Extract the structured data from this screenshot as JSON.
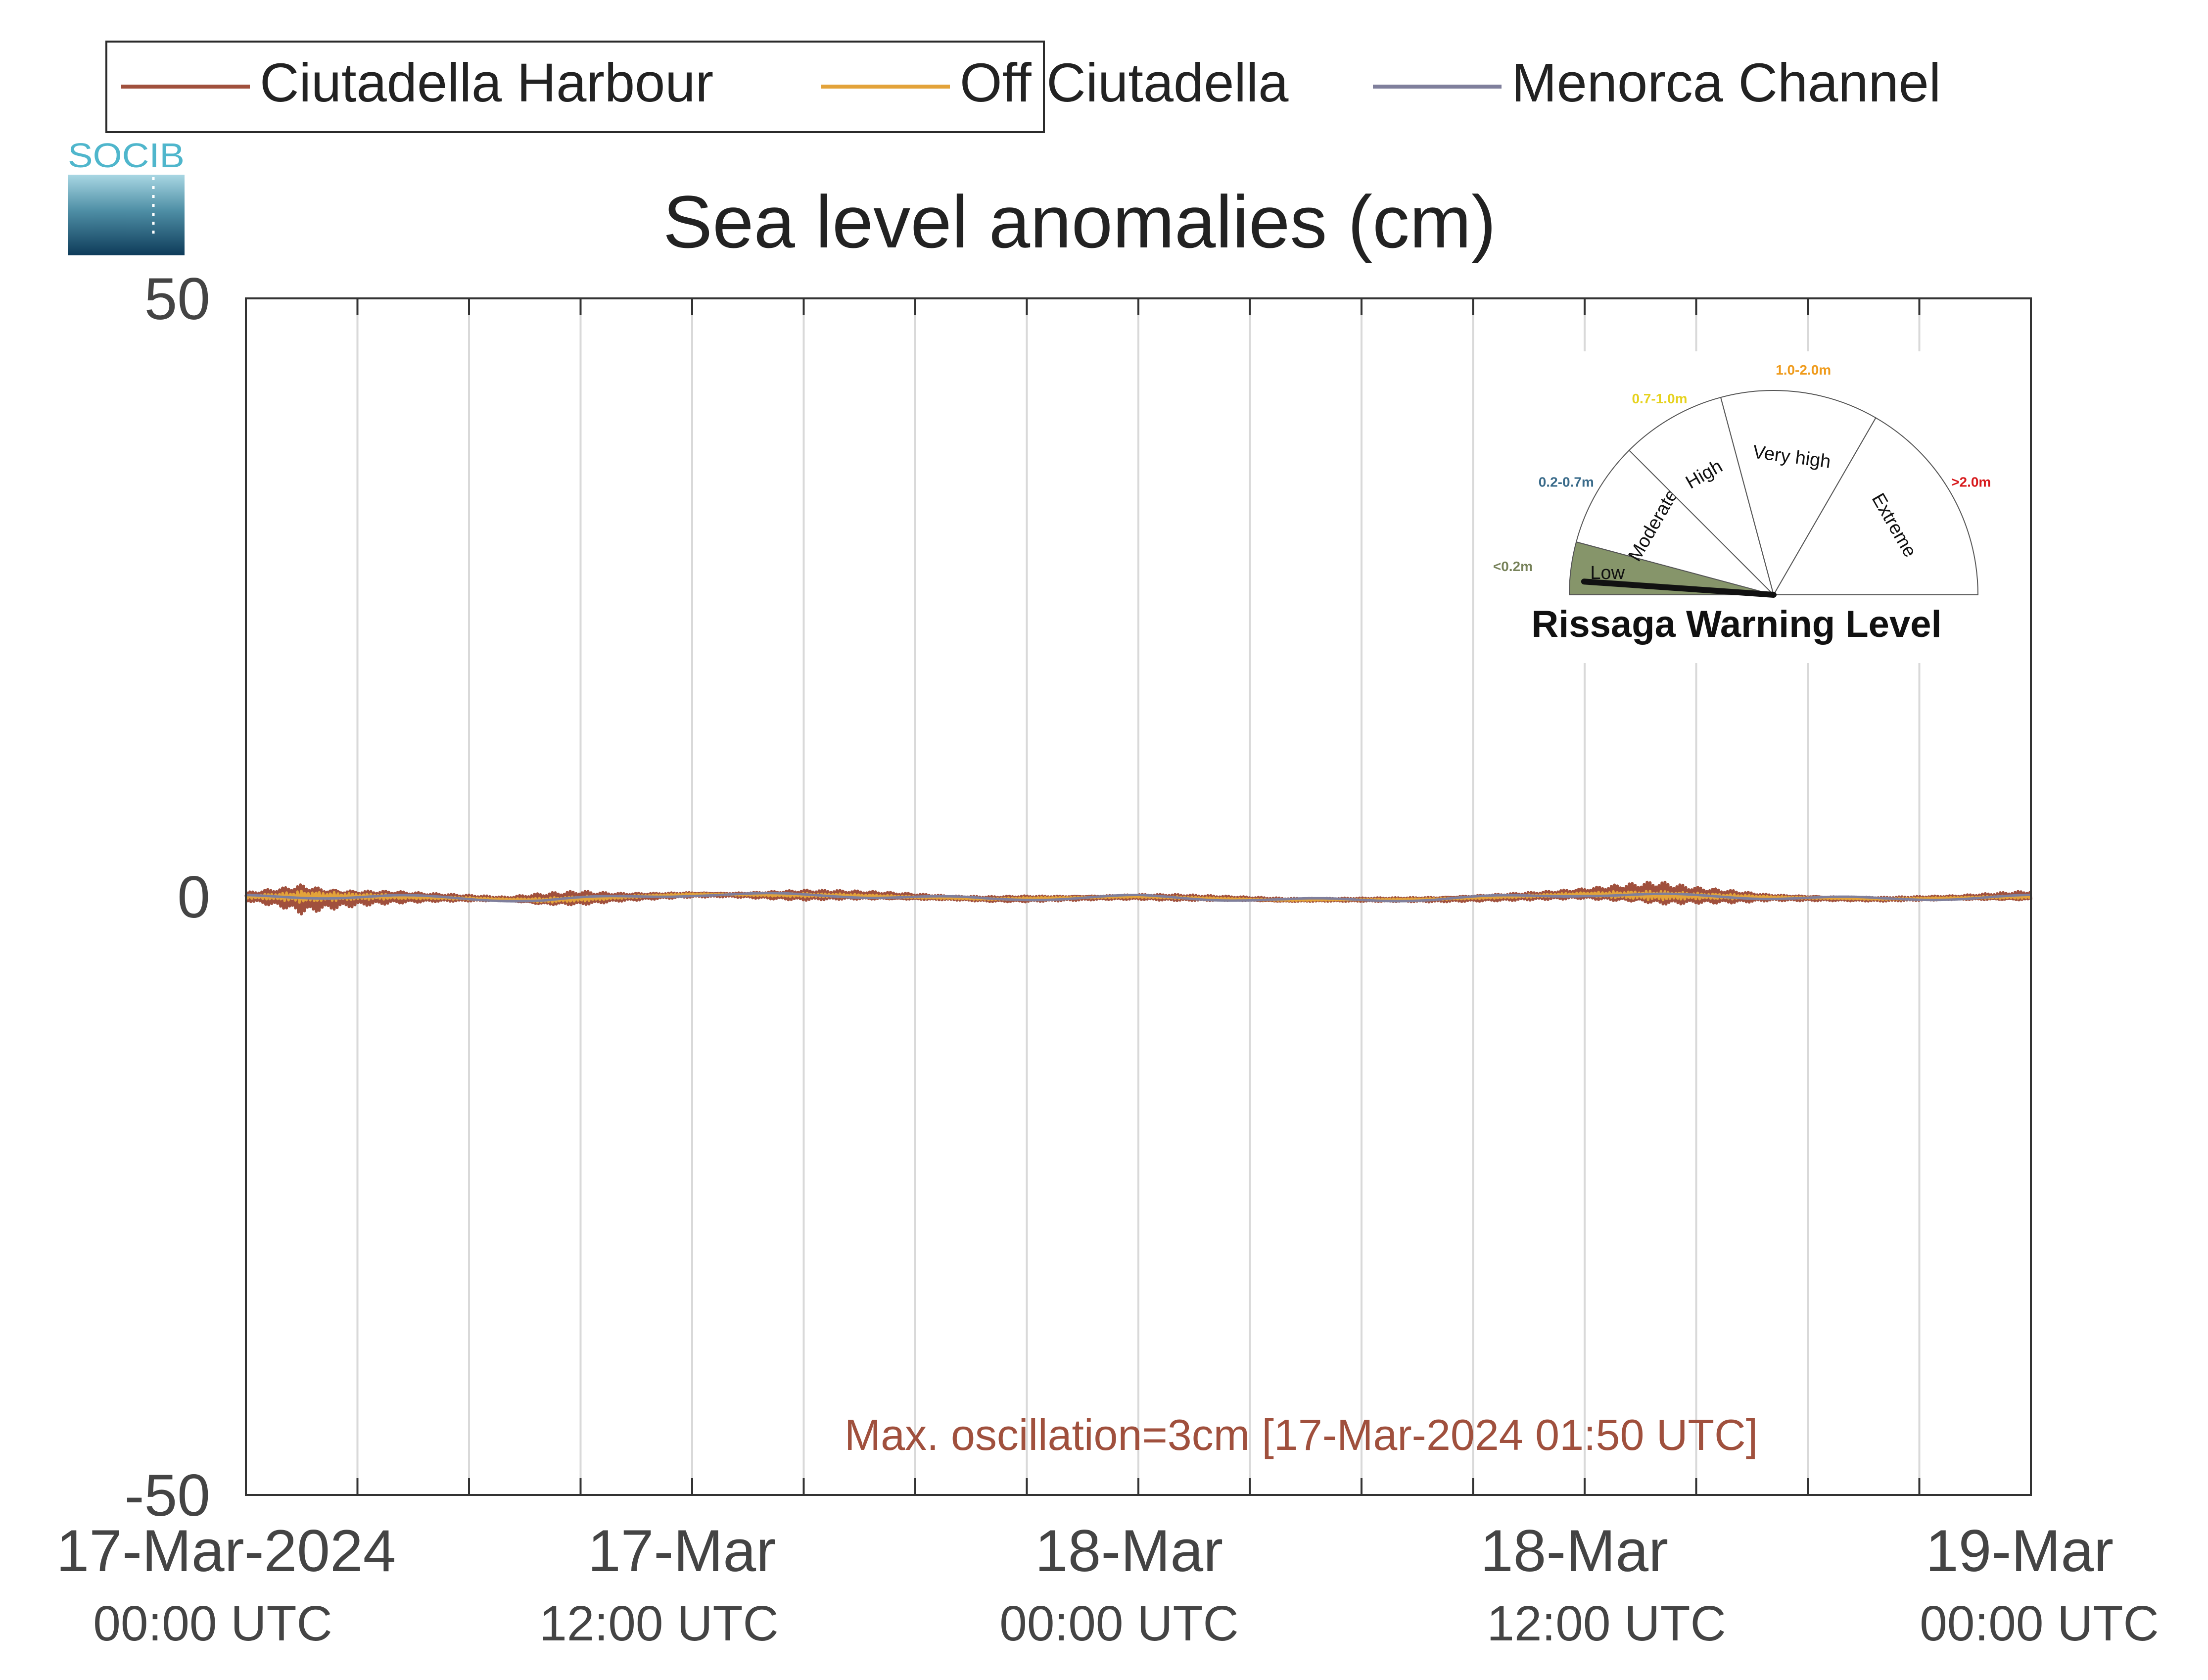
{
  "logo": {
    "text": "SOCIB"
  },
  "legend": {
    "items": [
      {
        "label": "Ciutadella Harbour",
        "color": "#a0503d"
      },
      {
        "label": "Off Ciutadella",
        "color": "#e3a33a"
      },
      {
        "label": "Menorca Channel",
        "color": "#7f7f9c"
      }
    ]
  },
  "chart_data": {
    "type": "line",
    "title": "Sea level anomalies (cm)",
    "xlabel": "",
    "ylabel": "",
    "ylim": [
      -50,
      50
    ],
    "yticks": [
      50,
      0,
      -50
    ],
    "xrange_hours": [
      0,
      48
    ],
    "xticks": [
      {
        "line1": "17-Mar-2024",
        "line2": "00:00 UTC"
      },
      {
        "line1": "17-Mar",
        "line2": "12:00 UTC"
      },
      {
        "line1": "18-Mar",
        "line2": "00:00 UTC"
      },
      {
        "line1": "18-Mar",
        "line2": "12:00 UTC"
      },
      {
        "line1": "19-Mar",
        "line2": "00:00 UTC"
      }
    ],
    "grid": "vertical every 3 hours",
    "legend_position": "top",
    "series": [
      {
        "name": "Ciutadella Harbour",
        "color": "#a0503d",
        "envelope_note": "high-frequency oscillation, amplitude in cm vs hours",
        "amplitude_profile": [
          [
            0,
            0.4
          ],
          [
            1,
            1.0
          ],
          [
            1.5,
            1.5
          ],
          [
            2,
            1.2
          ],
          [
            3,
            0.8
          ],
          [
            4,
            0.6
          ],
          [
            5,
            0.4
          ],
          [
            6,
            0.3
          ],
          [
            7,
            0.2
          ],
          [
            8,
            0.6
          ],
          [
            9,
            0.7
          ],
          [
            10,
            0.4
          ],
          [
            11,
            0.3
          ],
          [
            13,
            0.2
          ],
          [
            15,
            0.5
          ],
          [
            17,
            0.4
          ],
          [
            19,
            0.2
          ],
          [
            21,
            0.3
          ],
          [
            23,
            0.2
          ],
          [
            25,
            0.3
          ],
          [
            27,
            0.2
          ],
          [
            29,
            0.15
          ],
          [
            31,
            0.2
          ],
          [
            33,
            0.3
          ],
          [
            35,
            0.4
          ],
          [
            36,
            0.5
          ],
          [
            37,
            0.9
          ],
          [
            38,
            1.2
          ],
          [
            39,
            0.8
          ],
          [
            40,
            0.6
          ],
          [
            41,
            0.3
          ],
          [
            43,
            0.2
          ],
          [
            46,
            0.2
          ],
          [
            48,
            0.5
          ]
        ],
        "baseline_profile": [
          [
            0,
            0
          ],
          [
            4,
            0
          ],
          [
            8,
            -0.3
          ],
          [
            12,
            0.2
          ],
          [
            16,
            0.1
          ],
          [
            20,
            -0.2
          ],
          [
            24,
            0
          ],
          [
            28,
            -0.3
          ],
          [
            32,
            -0.2
          ],
          [
            36,
            0.2
          ],
          [
            40,
            0
          ],
          [
            44,
            -0.2
          ],
          [
            48,
            0
          ]
        ]
      },
      {
        "name": "Off Ciutadella",
        "color": "#e3a33a"
      },
      {
        "name": "Menorca Channel",
        "color": "#7f7f9c"
      }
    ],
    "annotation": {
      "text": "Max. oscillation=3cm [17-Mar-2024 01:50 UTC]",
      "color": "#a0503d"
    }
  },
  "inset": {
    "title": "Rissaga Warning Level",
    "needle_level": "Low",
    "segments": [
      {
        "label": "Low",
        "range": "<0.2m",
        "range_color": "#77825a",
        "fill": "#86956a",
        "active": true
      },
      {
        "label": "Moderate",
        "range": "0.2-0.7m",
        "range_color": "#3a6b8a",
        "fill": "none",
        "active": false
      },
      {
        "label": "High",
        "range": "0.7-1.0m",
        "range_color": "#e6d21e",
        "fill": "none",
        "active": false
      },
      {
        "label": "Very high",
        "range": "1.0-2.0m",
        "range_color": "#ef9b1c",
        "fill": "none",
        "active": false
      },
      {
        "label": "Extreme",
        "range": ">2.0m",
        "range_color": "#d7191c",
        "fill": "none",
        "active": false
      }
    ]
  }
}
